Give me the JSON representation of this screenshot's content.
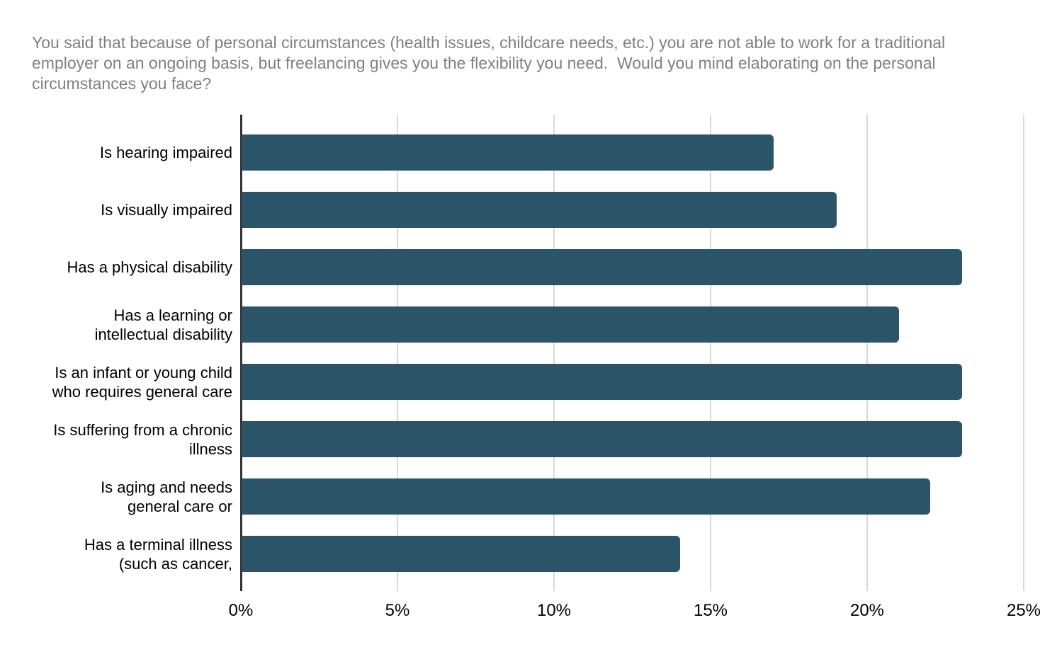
{
  "title": {
    "lines": [
      "You said that because of personal circumstances (health issues, childcare needs, etc.) you are not able to work for a traditional",
      "employer on an ongoing basis, but freelancing gives you the flexibility you need.  Would you mind elaborating on the personal",
      "circumstances you face?"
    ]
  },
  "chart_data": {
    "type": "bar",
    "orientation": "horizontal",
    "title": "You said that because of personal circumstances (health issues, childcare needs, etc.) you are not able to work for a traditional employer on an ongoing basis, but freelancing gives you the flexibility you need.  Would you mind elaborating on the personal circumstances you face?",
    "categories": [
      "Is hearing impaired",
      "Is visually impaired",
      "Has a physical disability",
      "Has a learning or\nintellectual disability",
      "Is an infant or young child\nwho requires general care",
      "Is suffering from a chronic\nillness",
      "Is aging and needs\ngeneral care or",
      "Has a terminal illness\n(such as cancer,"
    ],
    "values": [
      17,
      19,
      23,
      21,
      23,
      23,
      22,
      14
    ],
    "value_unit": "%",
    "xlabel": "",
    "ylabel": "",
    "xlim": [
      0,
      25
    ],
    "x_tick_step": 5,
    "x_ticks": [
      "0%",
      "5%",
      "10%",
      "15%",
      "20%",
      "25%"
    ],
    "grid": true,
    "legend": false,
    "colors": {
      "bar": "#2c5468",
      "gridline": "#d9d9d9",
      "axis_line": "#333333",
      "title_text": "#808080",
      "label_text": "#000000",
      "background": "#ffffff"
    }
  }
}
